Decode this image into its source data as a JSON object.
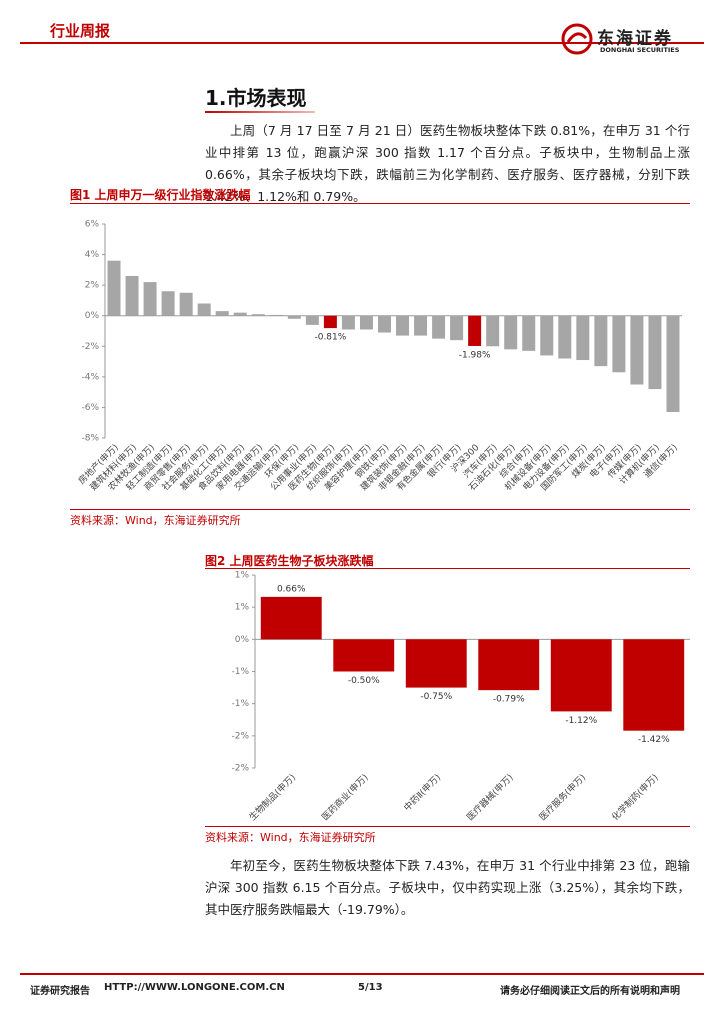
{
  "header": {
    "title": "行业周报",
    "logo_cn": "东海证券",
    "logo_en": "DONGHAI SECURITIES"
  },
  "section_title": "1.市场表现",
  "paragraph1": "上周（7 月 17 日至 7 月 21 日）医药生物板块整体下跌 0.81%，在申万 31 个行业中排第 13 位，跑赢沪深 300 指数 1.17 个百分点。子板块中，生物制品上涨 0.66%，其余子板块均下跌，跌幅前三为化学制药、医疗服务、医疗器械，分别下跌 1.42%、1.12%和 0.79%。",
  "chart_data": [
    {
      "type": "bar",
      "title": "图1 上周申万一级行业指数涨跌幅",
      "categories": [
        "房地产(申万)",
        "建筑材料(申万)",
        "农林牧渔(申万)",
        "轻工制造(申万)",
        "商贸零售(申万)",
        "社会服务(申万)",
        "基础化工(申万)",
        "食品饮料(申万)",
        "家用电器(申万)",
        "交通运输(申万)",
        "环保(申万)",
        "公用事业(申万)",
        "医药生物(申万)",
        "纺织服饰(申万)",
        "美容护理(申万)",
        "钢铁(申万)",
        "建筑装饰(申万)",
        "非银金融(申万)",
        "有色金属(申万)",
        "银行(申万)",
        "沪深300",
        "汽车(申万)",
        "石油石化(申万)",
        "综合(申万)",
        "机械设备(申万)",
        "电力设备(申万)",
        "国防军工(申万)",
        "煤炭(申万)",
        "电子(申万)",
        "传媒(申万)",
        "计算机(申万)",
        "通信(申万)"
      ],
      "values": [
        3.6,
        2.6,
        2.2,
        1.6,
        1.5,
        0.8,
        0.3,
        0.2,
        0.1,
        0.05,
        -0.2,
        -0.6,
        -0.81,
        -0.9,
        -0.9,
        -1.1,
        -1.3,
        -1.3,
        -1.5,
        -1.6,
        -1.98,
        -2.0,
        -2.2,
        -2.3,
        -2.6,
        -2.8,
        -2.9,
        -3.3,
        -3.7,
        -4.5,
        -4.8,
        -6.3
      ],
      "value_labels": [
        null,
        null,
        null,
        null,
        null,
        null,
        null,
        null,
        null,
        null,
        null,
        null,
        "-0.81%",
        null,
        null,
        null,
        null,
        null,
        null,
        null,
        "-1.98%",
        null,
        null,
        null,
        null,
        null,
        null,
        null,
        null,
        null,
        null,
        null
      ],
      "color": "#a6a6a6",
      "highlight_color": "#c00000",
      "ylim": [
        -8,
        6
      ],
      "yticks": [
        {
          "value": 6,
          "label": "6%"
        },
        {
          "value": 4,
          "label": "4%"
        },
        {
          "value": 2,
          "label": "2%"
        },
        {
          "value": 0,
          "label": "0%"
        },
        {
          "value": -2,
          "label": "-2%"
        },
        {
          "value": -4,
          "label": "-4%"
        },
        {
          "value": -6,
          "label": "-6%"
        },
        {
          "value": -8,
          "label": "-8%"
        }
      ],
      "grid": false,
      "source": "资料来源：Wind，东海证券研究所"
    },
    {
      "type": "bar",
      "title": "图2 上周医药生物子板块涨跌幅",
      "categories": [
        "生物制品(申万)",
        "医药商业(申万)",
        "中药Ⅱ(申万)",
        "医疗器械(申万)",
        "医疗服务(申万)",
        "化学制药(申万)"
      ],
      "values": [
        0.66,
        -0.5,
        -0.75,
        -0.79,
        -1.12,
        -1.42
      ],
      "value_labels": [
        "0.66%",
        "-0.50%",
        "-0.75%",
        "-0.79%",
        "-1.12%",
        "-1.42%"
      ],
      "color": "#c00000",
      "ylim": [
        -2,
        1
      ],
      "yticks": [
        {
          "value": 1,
          "label": "1%"
        },
        {
          "value": 0.5,
          "label": "1%"
        },
        {
          "value": 0,
          "label": "0%"
        },
        {
          "value": -0.5,
          "label": "-1%"
        },
        {
          "value": -1,
          "label": "-1%"
        },
        {
          "value": -1.5,
          "label": "-2%"
        },
        {
          "value": -2,
          "label": "-2%"
        }
      ],
      "grid": false,
      "source": "资料来源：Wind，东海证券研究所"
    }
  ],
  "paragraph2": "年初至今，医药生物板块整体下跌 7.43%，在申万 31 个行业中排第 23 位，跑输沪深 300 指数 6.15 个百分点。子板块中，仅中药实现上涨（3.25%），其余均下跌，其中医疗服务跌幅最大（-19.79%）。",
  "footer": {
    "left": "证券研究报告",
    "url": "HTTP://WWW.LONGONE.COM.CN",
    "page": "5/13",
    "notice": "请务必仔细阅读正文后的所有说明和声明"
  }
}
